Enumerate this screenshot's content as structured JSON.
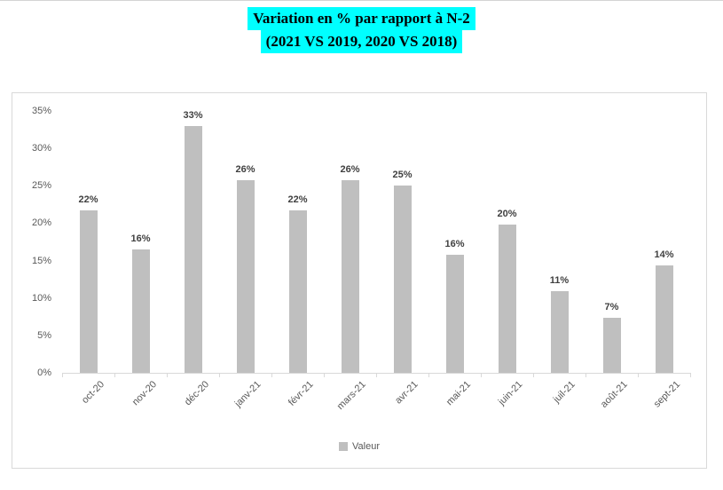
{
  "title": {
    "line1": "Variation en % par rapport à N-2",
    "line2": "(2021 VS 2019, 2020 VS 2018)",
    "highlight_color": "#00FFFF",
    "text_color": "#000000"
  },
  "chart_data": {
    "type": "bar",
    "title": "Variation en % par rapport à N-2 (2021 VS 2019, 2020 VS 2018)",
    "categories": [
      "oct-20",
      "nov-20",
      "déc-20",
      "janv-21",
      "févr-21",
      "mars-21",
      "avr-21",
      "mai-21",
      "juin-21",
      "juil-21",
      "août-21",
      "sept-21"
    ],
    "series": [
      {
        "name": "Valeur",
        "color": "#BFBFBF",
        "values": [
          22,
          16,
          33,
          26,
          22,
          26,
          25,
          16,
          20,
          11,
          7,
          14
        ],
        "values_precise": [
          21.7,
          16.5,
          33.0,
          25.7,
          21.7,
          25.7,
          25.0,
          15.8,
          19.8,
          10.9,
          7.4,
          14.3
        ],
        "labels": [
          "22%",
          "16%",
          "33%",
          "26%",
          "22%",
          "26%",
          "25%",
          "16%",
          "20%",
          "11%",
          "7%",
          "14%"
        ]
      }
    ],
    "xlabel": "",
    "ylabel": "",
    "ylim": [
      0,
      35
    ],
    "ytick_step": 5,
    "ytick_labels": [
      "0%",
      "5%",
      "10%",
      "15%",
      "20%",
      "25%",
      "30%",
      "35%"
    ],
    "grid": false,
    "legend": {
      "position": "bottom",
      "entries": [
        "Valeur"
      ]
    }
  },
  "legend": {
    "label": "Valeur"
  },
  "colors": {
    "bar": "#BFBFBF",
    "axis": "#D9D9D9",
    "card_border": "#D9D9D9",
    "tick_label": "#595959",
    "data_label": "#404040",
    "title_text": "#000000",
    "title_highlight": "#00FFFF",
    "background": "#FFFFFF"
  }
}
